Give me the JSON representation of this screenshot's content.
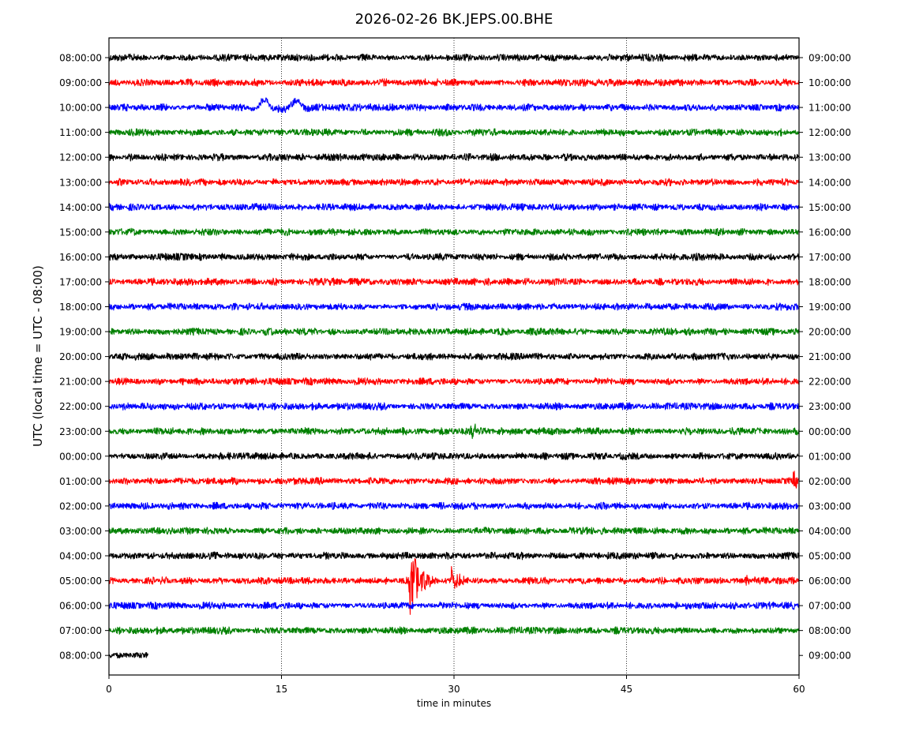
{
  "chart_data": {
    "type": "line",
    "title": "2026-02-26 BK.JEPS.00.BHE",
    "xlabel": "time in minutes",
    "ylabel": "UTC (local time = UTC - 08:00)",
    "xlim": [
      0,
      60
    ],
    "x_ticks": [
      "0",
      "15",
      "30",
      "45",
      "60"
    ],
    "vertical_gridlines_at": [
      15,
      30,
      45
    ],
    "grid": "dotted vertical",
    "trace_colors": [
      "#000000",
      "#ff0000",
      "#0000ff",
      "#008000"
    ],
    "left_labels": [
      "08:00:00",
      "09:00:00",
      "10:00:00",
      "11:00:00",
      "12:00:00",
      "13:00:00",
      "14:00:00",
      "15:00:00",
      "16:00:00",
      "17:00:00",
      "18:00:00",
      "19:00:00",
      "20:00:00",
      "21:00:00",
      "22:00:00",
      "23:00:00",
      "00:00:00",
      "01:00:00",
      "02:00:00",
      "03:00:00",
      "04:00:00",
      "05:00:00",
      "06:00:00",
      "07:00:00",
      "08:00:00"
    ],
    "right_labels": [
      "09:00:00",
      "10:00:00",
      "11:00:00",
      "12:00:00",
      "13:00:00",
      "14:00:00",
      "15:00:00",
      "16:00:00",
      "17:00:00",
      "18:00:00",
      "19:00:00",
      "20:00:00",
      "21:00:00",
      "22:00:00",
      "23:00:00",
      "00:00:00",
      "01:00:00",
      "02:00:00",
      "03:00:00",
      "04:00:00",
      "05:00:00",
      "06:00:00",
      "07:00:00",
      "08:00:00",
      "09:00:00"
    ],
    "last_row_end_minute": 3.4,
    "events": [
      {
        "row": 2,
        "minute": 13.5,
        "amplitude": 10,
        "kind": "long-period swell"
      },
      {
        "row": 2,
        "minute": 16.3,
        "amplitude": 9,
        "kind": "long-period swell"
      },
      {
        "row": 21,
        "minute": 26.1,
        "amplitude": 48,
        "kind": "earthquake arrival"
      },
      {
        "row": 21,
        "minute": 29.8,
        "amplitude": 16,
        "kind": "secondary arrival"
      },
      {
        "row": 21,
        "minute": 55.4,
        "amplitude": 6,
        "kind": "burst"
      },
      {
        "row": 17,
        "minute": 59.5,
        "amplitude": 12,
        "kind": "burst"
      },
      {
        "row": 15,
        "minute": 31.5,
        "amplitude": 9,
        "kind": "burst"
      }
    ]
  }
}
